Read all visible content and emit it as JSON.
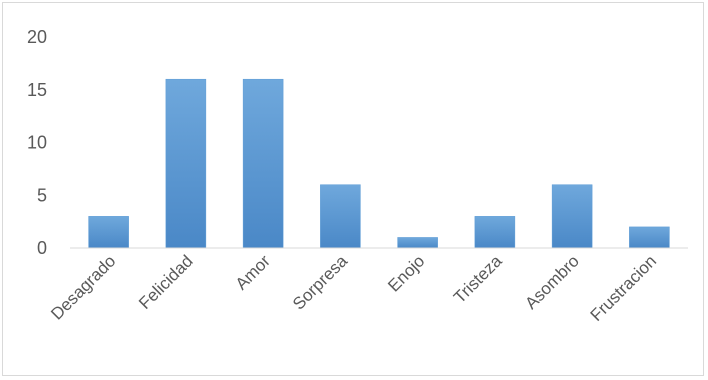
{
  "chart_data": {
    "type": "bar",
    "categories": [
      "Desagrado",
      "Felicidad",
      "Amor",
      "Sorpresa",
      "Enojo",
      "Tristeza",
      "Asombro",
      "Frustracion"
    ],
    "values": [
      3,
      16,
      16,
      6,
      1,
      3,
      6,
      2
    ],
    "ylim": [
      0,
      20
    ],
    "yticks": [
      0,
      5,
      10,
      15,
      20
    ],
    "grid": false,
    "legend": "none",
    "bar_color": "#5b9bd5",
    "bar_color_light": "#6fa8dc",
    "bar_color_dark": "#4a88c7"
  }
}
